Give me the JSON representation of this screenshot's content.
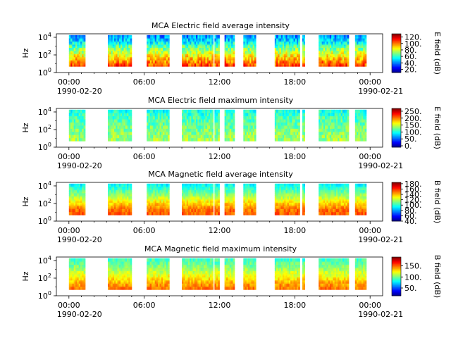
{
  "figure": {
    "background": "#ffffff"
  },
  "chart_data": [
    {
      "type": "heatmap",
      "title": "MCA  Electric field average intensity",
      "ylabel": "Hz",
      "y_scale": "log",
      "y_ticks": [
        {
          "exp": "0",
          "value": 1
        },
        {
          "exp": "2",
          "value": 100
        },
        {
          "exp": "4",
          "value": 10000
        }
      ],
      "y_range": [
        1,
        25000
      ],
      "data_y_range": [
        5,
        18000
      ],
      "x_ticks": [
        "00:00",
        "06:00",
        "12:00",
        "18:00",
        "00:00"
      ],
      "x_date_labels": [
        "1990-02-20",
        "1990-02-21"
      ],
      "x_range_hours": [
        -1,
        25
      ],
      "colorbar": {
        "label": "E field (dB)",
        "vmin": 10,
        "vmax": 130,
        "ticks": [
          "20.",
          "40.",
          "60.",
          "80.",
          "100.",
          "120."
        ],
        "tick_values": [
          20,
          40,
          60,
          80,
          100,
          120
        ]
      },
      "profile": [
        110,
        95,
        82,
        68,
        52,
        40
      ],
      "variability": 12,
      "segments": [
        [
          0,
          1.3
        ],
        [
          3.1,
          5.0
        ],
        [
          6.2,
          8.0
        ],
        [
          9.0,
          11.5
        ],
        [
          11.6,
          12.0
        ],
        [
          12.4,
          13.2
        ],
        [
          13.9,
          14.9
        ],
        [
          16.4,
          18.4
        ],
        [
          18.6,
          18.8
        ],
        [
          19.9,
          22.3
        ],
        [
          22.8,
          23.7
        ]
      ]
    },
    {
      "type": "heatmap",
      "title": "MCA  Electric field maximum intensity",
      "ylabel": "Hz",
      "y_scale": "log",
      "y_ticks": [
        {
          "exp": "0",
          "value": 1
        },
        {
          "exp": "2",
          "value": 100
        },
        {
          "exp": "4",
          "value": 10000
        }
      ],
      "y_range": [
        1,
        25000
      ],
      "data_y_range": [
        5,
        18000
      ],
      "x_ticks": [
        "00:00",
        "06:00",
        "12:00",
        "18:00",
        "00:00"
      ],
      "x_date_labels": [
        "1990-02-20",
        "1990-02-21"
      ],
      "x_range_hours": [
        -1,
        25
      ],
      "colorbar": {
        "label": "E field (dB)",
        "vmin": -10,
        "vmax": 270,
        "ticks": [
          "0.",
          "50.",
          "100.",
          "150.",
          "200.",
          "250."
        ],
        "tick_values": [
          0,
          50,
          100,
          150,
          200,
          250
        ]
      },
      "profile": [
        140,
        135,
        128,
        120,
        112,
        100
      ],
      "variability": 22,
      "segments": [
        [
          0,
          1.3
        ],
        [
          3.1,
          5.0
        ],
        [
          6.2,
          8.0
        ],
        [
          9.0,
          11.5
        ],
        [
          11.6,
          12.0
        ],
        [
          12.4,
          13.2
        ],
        [
          13.9,
          14.9
        ],
        [
          16.4,
          18.4
        ],
        [
          18.6,
          18.8
        ],
        [
          19.9,
          22.3
        ],
        [
          22.8,
          23.7
        ]
      ]
    },
    {
      "type": "heatmap",
      "title": "MCA  Magnetic field average intensity",
      "ylabel": "Hz",
      "y_scale": "log",
      "y_ticks": [
        {
          "exp": "0",
          "value": 1
        },
        {
          "exp": "2",
          "value": 100
        },
        {
          "exp": "4",
          "value": 10000
        }
      ],
      "y_range": [
        1,
        25000
      ],
      "data_y_range": [
        5,
        18000
      ],
      "x_ticks": [
        "00:00",
        "06:00",
        "12:00",
        "18:00",
        "00:00"
      ],
      "x_date_labels": [
        "1990-02-20",
        "1990-02-21"
      ],
      "x_range_hours": [
        -1,
        25
      ],
      "colorbar": {
        "label": "B field (dB)",
        "vmin": 40,
        "vmax": 185,
        "ticks": [
          "40.",
          "60.",
          "80.",
          "100.",
          "120.",
          "140.",
          "160.",
          "180."
        ],
        "tick_values": [
          40,
          60,
          80,
          100,
          120,
          140,
          160,
          180
        ]
      },
      "profile": [
        155,
        150,
        135,
        118,
        105,
        92
      ],
      "variability": 8,
      "segments": [
        [
          0,
          1.3
        ],
        [
          3.1,
          5.0
        ],
        [
          6.2,
          8.0
        ],
        [
          9.0,
          11.5
        ],
        [
          11.6,
          12.0
        ],
        [
          12.4,
          13.2
        ],
        [
          13.9,
          14.9
        ],
        [
          16.4,
          18.4
        ],
        [
          18.6,
          18.8
        ],
        [
          19.9,
          22.3
        ],
        [
          22.8,
          23.7
        ]
      ]
    },
    {
      "type": "heatmap",
      "title": "MCA  Magnetic field maximum intensity",
      "ylabel": "Hz",
      "y_scale": "log",
      "y_ticks": [
        {
          "exp": "0",
          "value": 1
        },
        {
          "exp": "2",
          "value": 100
        },
        {
          "exp": "4",
          "value": 10000
        }
      ],
      "y_range": [
        1,
        25000
      ],
      "data_y_range": [
        5,
        18000
      ],
      "x_ticks": [
        "00:00",
        "06:00",
        "12:00",
        "18:00",
        "00:00"
      ],
      "x_date_labels": [
        "1990-02-20",
        "1990-02-21"
      ],
      "x_range_hours": [
        -1,
        25
      ],
      "colorbar": {
        "label": "B field (dB)",
        "vmin": 15,
        "vmax": 190,
        "ticks": [
          "50.",
          "100.",
          "150."
        ],
        "tick_values": [
          50,
          100,
          150
        ]
      },
      "profile": [
        150,
        140,
        125,
        112,
        100,
        90
      ],
      "variability": 10,
      "segments": [
        [
          0,
          1.3
        ],
        [
          3.1,
          5.0
        ],
        [
          6.2,
          8.0
        ],
        [
          9.0,
          11.5
        ],
        [
          11.6,
          12.0
        ],
        [
          12.4,
          13.2
        ],
        [
          13.9,
          14.9
        ],
        [
          16.4,
          18.4
        ],
        [
          18.6,
          18.8
        ],
        [
          19.9,
          22.3
        ],
        [
          22.8,
          23.7
        ]
      ]
    }
  ]
}
